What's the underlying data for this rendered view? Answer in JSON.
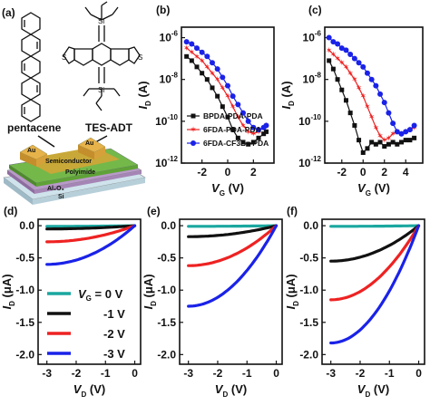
{
  "panel_a": {
    "panel_label": "(a)",
    "molecule_left": "pentacene",
    "molecule_right": "TES-ADT",
    "si_label": "Si",
    "device_layers": [
      "Au",
      "Au",
      "Semiconductor",
      "Polyimide",
      "Al₂O₃",
      "Si"
    ]
  },
  "colors": {
    "black": "#111111",
    "red": "#ee2222",
    "blue": "#1a22e8",
    "teal": "#1aa7a0"
  },
  "chart_data": [
    {
      "panel_label": "(b)",
      "type": "scatter",
      "xlabel_main": "V",
      "xlabel_sub": "G",
      "xlabel_unit": " (V)",
      "ylabel_main": "I",
      "ylabel_sub": "D",
      "ylabel_unit": " (A)",
      "xlim": [
        -3.6,
        3.6
      ],
      "ylim_exp": [
        -12,
        -5.5
      ],
      "yscale": "log",
      "x_ticks": [
        -2,
        0,
        2
      ],
      "y_ticks": [
        {
          "base": "10",
          "exp": "-6",
          "value": -6
        },
        {
          "base": "10",
          "exp": "-8",
          "value": -8
        },
        {
          "base": "10",
          "exp": "-10",
          "value": -10
        },
        {
          "base": "10",
          "exp": "-12",
          "value": -12
        }
      ],
      "legend": [
        "BPDA-PDA-PDA",
        "6FDA-PDA-PDA",
        "6FDA-CF3Bz-PDA"
      ],
      "series": [
        {
          "name": "BPDA-PDA-PDA",
          "color": "#111111",
          "marker": "square",
          "x": [
            -3.2,
            -2.8,
            -2.4,
            -2.0,
            -1.6,
            -1.2,
            -0.8,
            -0.4,
            0.0,
            0.4,
            0.8,
            1.2,
            1.6,
            2.0,
            2.4,
            2.8,
            3.0
          ],
          "log_y": [
            -6.9,
            -7.1,
            -7.4,
            -7.7,
            -8.0,
            -8.4,
            -8.8,
            -9.3,
            -9.8,
            -10.4,
            -10.8,
            -11.0,
            -11.1,
            -11.0,
            -10.8,
            -10.6,
            -10.5
          ]
        },
        {
          "name": "6FDA-PDA-PDA",
          "color": "#ee2222",
          "marker": "star",
          "x": [
            -3.2,
            -2.8,
            -2.4,
            -2.0,
            -1.6,
            -1.2,
            -0.8,
            -0.4,
            0.0,
            0.4,
            0.8,
            1.2,
            1.6,
            2.0,
            2.4,
            2.8,
            3.0
          ],
          "log_y": [
            -6.5,
            -6.7,
            -6.9,
            -7.1,
            -7.4,
            -7.7,
            -8.0,
            -8.4,
            -8.8,
            -9.3,
            -9.8,
            -10.2,
            -10.5,
            -10.6,
            -10.5,
            -10.3,
            -10.2
          ]
        },
        {
          "name": "6FDA-CF3Bz-PDA",
          "color": "#1a22e8",
          "marker": "circle",
          "x": [
            -3.2,
            -2.8,
            -2.4,
            -2.0,
            -1.6,
            -1.2,
            -0.8,
            -0.4,
            0.0,
            0.4,
            0.8,
            1.2,
            1.6,
            2.0,
            2.4,
            2.8,
            3.0
          ],
          "log_y": [
            -6.2,
            -6.3,
            -6.5,
            -6.7,
            -6.9,
            -7.2,
            -7.5,
            -7.9,
            -8.3,
            -8.8,
            -9.2,
            -9.6,
            -10.0,
            -10.3,
            -10.4,
            -10.3,
            -10.2
          ]
        }
      ]
    },
    {
      "panel_label": "(c)",
      "type": "scatter",
      "xlabel_main": "V",
      "xlabel_sub": "G",
      "xlabel_unit": " (V)",
      "ylabel_main": "I",
      "ylabel_sub": "D",
      "ylabel_unit": " (A)",
      "xlim": [
        -3.6,
        5.6
      ],
      "ylim_exp": [
        -12,
        -5.5
      ],
      "yscale": "log",
      "x_ticks": [
        -2,
        0,
        2,
        4
      ],
      "y_ticks": [
        {
          "base": "10",
          "exp": "-6",
          "value": -6
        },
        {
          "base": "10",
          "exp": "-8",
          "value": -8
        },
        {
          "base": "10",
          "exp": "-10",
          "value": -10
        },
        {
          "base": "10",
          "exp": "-12",
          "value": -12
        }
      ],
      "series": [
        {
          "name": "BPDA-PDA-PDA",
          "color": "#111111",
          "marker": "square",
          "x": [
            -3.2,
            -2.8,
            -2.4,
            -2.0,
            -1.6,
            -1.2,
            -0.8,
            -0.4,
            0.0,
            0.4,
            0.8,
            1.2,
            1.6,
            2.0,
            2.4,
            2.8,
            3.2,
            3.6,
            4.0,
            4.4,
            4.8
          ],
          "log_y": [
            -7.1,
            -7.5,
            -8.0,
            -8.5,
            -9.0,
            -9.6,
            -10.2,
            -10.9,
            -11.5,
            -11.3,
            -11.0,
            -11.1,
            -11.0,
            -11.2,
            -11.1,
            -11.0,
            -11.1,
            -11.0,
            -10.9,
            -10.9,
            -10.8
          ]
        },
        {
          "name": "6FDA-PDA-PDA",
          "color": "#ee2222",
          "marker": "star",
          "x": [
            -3.2,
            -2.8,
            -2.4,
            -2.0,
            -1.6,
            -1.2,
            -0.8,
            -0.4,
            0.0,
            0.4,
            0.8,
            1.2,
            1.6,
            2.0,
            2.4,
            2.8,
            3.2,
            3.6,
            4.0,
            4.4,
            4.8
          ],
          "log_y": [
            -6.6,
            -6.8,
            -7.0,
            -7.2,
            -7.4,
            -7.7,
            -8.0,
            -8.4,
            -8.8,
            -9.3,
            -9.8,
            -10.3,
            -10.7,
            -10.9,
            -10.8,
            -10.6,
            -10.5,
            -10.6,
            -10.5,
            -10.4,
            -10.3
          ]
        },
        {
          "name": "6FDA-CF3Bz-PDA",
          "color": "#1a22e8",
          "marker": "circle",
          "x": [
            -3.2,
            -2.8,
            -2.4,
            -2.0,
            -1.6,
            -1.2,
            -0.8,
            -0.4,
            0.0,
            0.4,
            0.8,
            1.2,
            1.6,
            2.0,
            2.4,
            2.8,
            3.2,
            3.6,
            4.0,
            4.4,
            4.8
          ],
          "log_y": [
            -6.0,
            -6.2,
            -6.3,
            -6.5,
            -6.6,
            -6.8,
            -7.0,
            -7.2,
            -7.4,
            -7.7,
            -8.0,
            -8.3,
            -8.7,
            -9.1,
            -9.6,
            -10.1,
            -10.5,
            -10.6,
            -10.5,
            -10.4,
            -10.2
          ]
        }
      ]
    },
    {
      "panel_label": "(d)",
      "type": "line",
      "xlabel_main": "V",
      "xlabel_sub": "D",
      "xlabel_unit": " (V)",
      "ylabel_main": "I",
      "ylabel_sub": "D",
      "ylabel_unit": " (μA)",
      "xlim": [
        -3.3,
        0.2
      ],
      "ylim": [
        -2.15,
        0.1
      ],
      "x_ticks": [
        -3,
        -2,
        -1,
        0
      ],
      "y_ticks": [
        "0.0",
        "-0.5",
        "-1.0",
        "-1.5",
        "-2.0"
      ],
      "legend_title_main": "V",
      "legend_title_sub": "G",
      "legend_title_rest": " = 0 V",
      "legend": [
        "-1 V",
        "-2 V",
        "-3 V"
      ],
      "series": [
        {
          "name": "VG = 0 V",
          "color": "#1aa7a0",
          "vg": 0,
          "endpoint": -0.01
        },
        {
          "name": "-1 V",
          "color": "#111111",
          "vg": -1,
          "endpoint": -0.05
        },
        {
          "name": "-2 V",
          "color": "#ee2222",
          "vg": -2,
          "endpoint": -0.25
        },
        {
          "name": "-3 V",
          "color": "#1a22e8",
          "vg": -3,
          "endpoint": -0.6
        }
      ]
    },
    {
      "panel_label": "(e)",
      "type": "line",
      "xlabel_main": "V",
      "xlabel_sub": "D",
      "xlabel_unit": " (V)",
      "ylabel_main": "I",
      "ylabel_sub": "D",
      "ylabel_unit": " (μA)",
      "xlim": [
        -3.3,
        0.2
      ],
      "ylim": [
        -2.15,
        0.1
      ],
      "x_ticks": [
        -3,
        -2,
        -1,
        0
      ],
      "y_ticks": [
        "0.0",
        "-0.5",
        "-1.0",
        "-1.5",
        "-2.0"
      ],
      "series": [
        {
          "name": "VG = 0 V",
          "color": "#1aa7a0",
          "vg": 0,
          "endpoint": -0.01
        },
        {
          "name": "-1 V",
          "color": "#111111",
          "vg": -1,
          "endpoint": -0.17
        },
        {
          "name": "-2 V",
          "color": "#ee2222",
          "vg": -2,
          "endpoint": -0.62
        },
        {
          "name": "-3 V",
          "color": "#1a22e8",
          "vg": -3,
          "endpoint": -1.25
        }
      ]
    },
    {
      "panel_label": "(f)",
      "type": "line",
      "xlabel_main": "V",
      "xlabel_sub": "D",
      "xlabel_unit": " (V)",
      "ylabel_main": "I",
      "ylabel_sub": "D",
      "ylabel_unit": " (μA)",
      "xlim": [
        -3.3,
        0.2
      ],
      "ylim": [
        -2.15,
        0.1
      ],
      "x_ticks": [
        -3,
        -2,
        -1,
        0
      ],
      "y_ticks": [
        "0.0",
        "-0.5",
        "-1.0",
        "-1.5",
        "-2.0"
      ],
      "series": [
        {
          "name": "VG = 0 V",
          "color": "#1aa7a0",
          "vg": 0,
          "endpoint": -0.01
        },
        {
          "name": "-1 V",
          "color": "#111111",
          "vg": -1,
          "endpoint": -0.55
        },
        {
          "name": "-2 V",
          "color": "#ee2222",
          "vg": -2,
          "endpoint": -1.15
        },
        {
          "name": "-3 V",
          "color": "#1a22e8",
          "vg": -3,
          "endpoint": -1.82
        }
      ]
    }
  ]
}
